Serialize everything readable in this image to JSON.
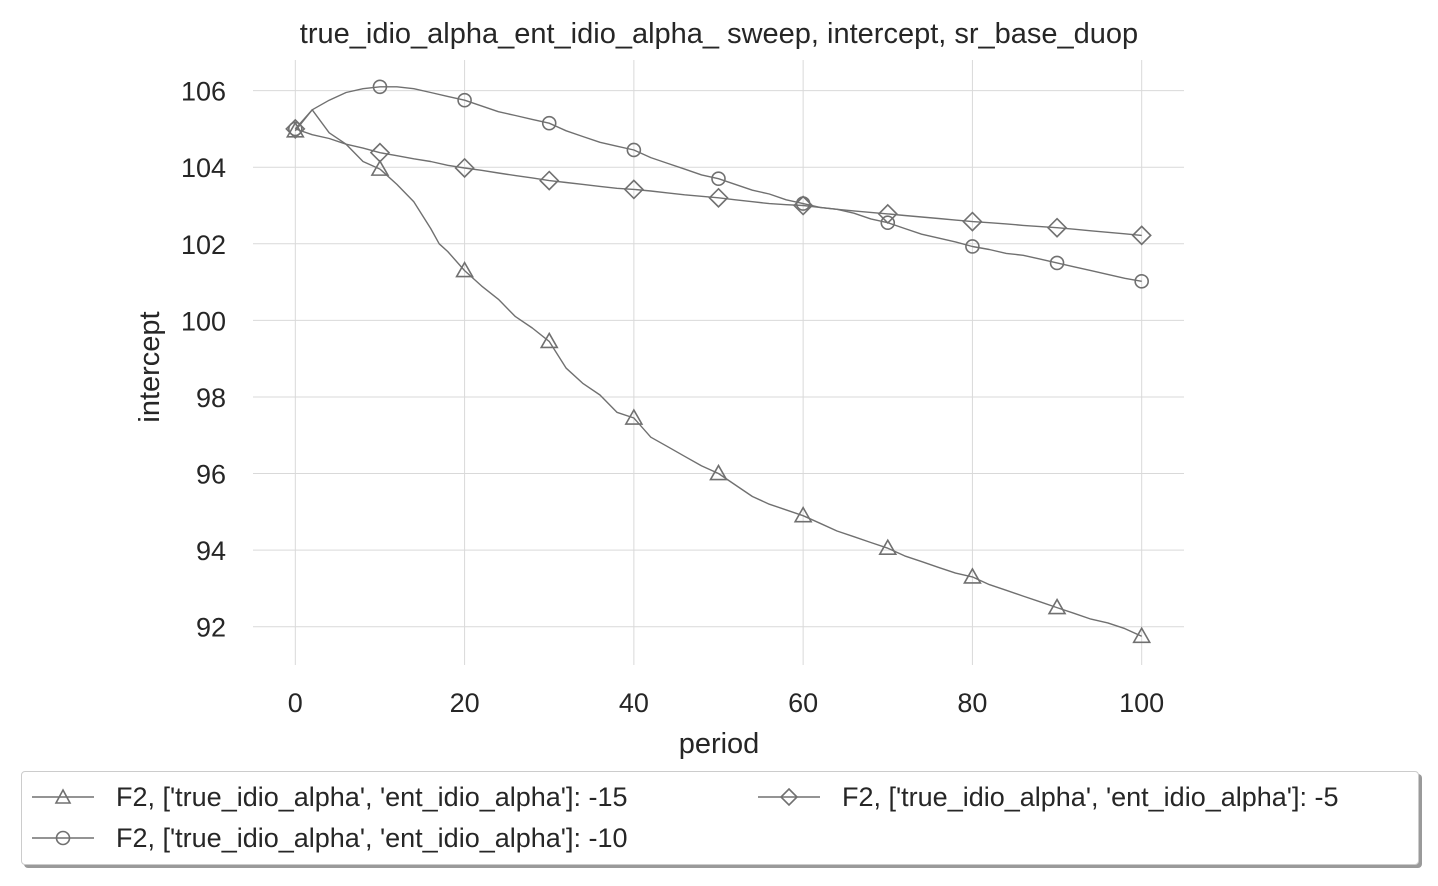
{
  "chart_data": {
    "type": "line",
    "title": "true_idio_alpha_ent_idio_alpha_ sweep, intercept, sr_base_duop",
    "xlabel": "period",
    "ylabel": "intercept",
    "xlim": [
      -5,
      105
    ],
    "ylim": [
      91,
      106.8
    ],
    "xticks": [
      0,
      20,
      40,
      60,
      80,
      100
    ],
    "yticks": [
      92,
      94,
      96,
      98,
      100,
      102,
      104,
      106
    ],
    "grid": true,
    "legend_position": "below plot",
    "line_color": "#707070",
    "series": [
      {
        "name": "F2, ['true_idio_alpha', 'ent_idio_alpha']: -15",
        "marker": "triangle",
        "x": [
          0,
          2,
          4,
          6,
          8,
          10,
          12,
          14,
          16,
          17,
          18,
          20,
          22,
          24,
          26,
          28,
          30,
          32,
          34,
          36,
          38,
          40,
          42,
          44,
          46,
          48,
          50,
          52,
          54,
          56,
          58,
          60,
          62,
          64,
          66,
          68,
          70,
          72,
          74,
          76,
          78,
          80,
          82,
          84,
          86,
          88,
          90,
          92,
          94,
          96,
          98,
          100
        ],
        "y": [
          104.95,
          105.5,
          104.9,
          104.6,
          104.15,
          103.95,
          103.55,
          103.1,
          102.4,
          102.0,
          101.8,
          101.3,
          100.9,
          100.55,
          100.1,
          99.8,
          99.45,
          98.75,
          98.35,
          98.05,
          97.6,
          97.45,
          96.95,
          96.7,
          96.45,
          96.2,
          96.0,
          95.7,
          95.4,
          95.2,
          95.05,
          94.9,
          94.7,
          94.5,
          94.35,
          94.2,
          94.05,
          93.85,
          93.7,
          93.55,
          93.4,
          93.3,
          93.1,
          92.95,
          92.8,
          92.65,
          92.5,
          92.35,
          92.2,
          92.1,
          91.95,
          91.75
        ],
        "marker_x": [
          0,
          10,
          20,
          30,
          40,
          50,
          60,
          70,
          80,
          90,
          100
        ]
      },
      {
        "name": "F2, ['true_idio_alpha', 'ent_idio_alpha']: -10",
        "marker": "circle",
        "x": [
          0,
          2,
          4,
          6,
          8,
          10,
          12,
          14,
          16,
          18,
          20,
          22,
          24,
          26,
          28,
          30,
          32,
          34,
          36,
          38,
          40,
          42,
          44,
          46,
          48,
          50,
          52,
          54,
          56,
          58,
          60,
          62,
          64,
          66,
          68,
          70,
          72,
          74,
          76,
          78,
          80,
          82,
          84,
          86,
          88,
          90,
          92,
          94,
          96,
          98,
          100
        ],
        "y": [
          105.0,
          105.5,
          105.75,
          105.95,
          106.05,
          106.1,
          106.1,
          106.05,
          105.95,
          105.85,
          105.75,
          105.6,
          105.45,
          105.35,
          105.25,
          105.15,
          104.95,
          104.8,
          104.65,
          104.55,
          104.45,
          104.25,
          104.1,
          103.95,
          103.8,
          103.7,
          103.55,
          103.4,
          103.3,
          103.15,
          103.05,
          102.95,
          102.9,
          102.8,
          102.65,
          102.55,
          102.4,
          102.25,
          102.15,
          102.05,
          101.93,
          101.85,
          101.75,
          101.7,
          101.6,
          101.5,
          101.4,
          101.3,
          101.2,
          101.1,
          101.02
        ],
        "marker_x": [
          0,
          10,
          20,
          30,
          40,
          50,
          60,
          70,
          80,
          90,
          100
        ]
      },
      {
        "name": "F2, ['true_idio_alpha', 'ent_idio_alpha']: -5",
        "marker": "diamond",
        "x": [
          0,
          2,
          4,
          6,
          8,
          10,
          12,
          14,
          16,
          18,
          20,
          22,
          24,
          26,
          28,
          30,
          32,
          34,
          36,
          38,
          40,
          42,
          44,
          46,
          48,
          50,
          52,
          54,
          56,
          58,
          60,
          62,
          64,
          66,
          68,
          70,
          72,
          74,
          76,
          78,
          80,
          82,
          84,
          86,
          88,
          90,
          92,
          94,
          96,
          98,
          100
        ],
        "y": [
          105.0,
          104.85,
          104.75,
          104.6,
          104.5,
          104.38,
          104.3,
          104.22,
          104.15,
          104.05,
          103.98,
          103.92,
          103.85,
          103.78,
          103.72,
          103.65,
          103.6,
          103.55,
          103.5,
          103.45,
          103.42,
          103.38,
          103.33,
          103.28,
          103.24,
          103.2,
          103.15,
          103.1,
          103.05,
          103.02,
          103.0,
          102.95,
          102.9,
          102.86,
          102.82,
          102.78,
          102.74,
          102.7,
          102.66,
          102.62,
          102.58,
          102.55,
          102.52,
          102.48,
          102.45,
          102.42,
          102.38,
          102.34,
          102.3,
          102.26,
          102.22
        ],
        "marker_x": [
          0,
          10,
          20,
          30,
          40,
          50,
          60,
          70,
          80,
          90,
          100
        ]
      }
    ]
  }
}
